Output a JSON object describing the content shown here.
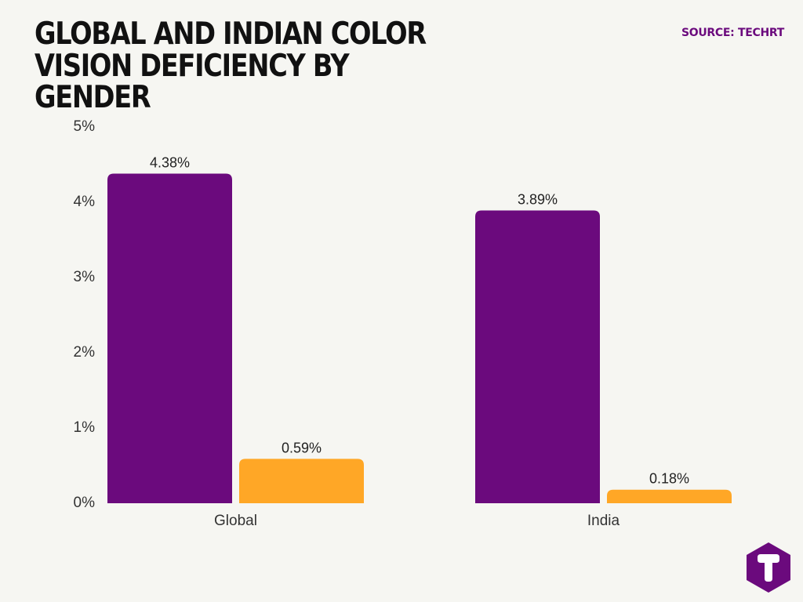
{
  "header": {
    "title": "GLOBAL AND INDIAN COLOR VISION DEFICIENCY BY GENDER",
    "source": "SOURCE: TECHRT"
  },
  "colors": {
    "series_1": "#6b0a7d",
    "series_2": "#ffa726",
    "source_text": "#6b0a7d",
    "logo_bg": "#6b0a7d",
    "logo_letter": "#ffffff"
  },
  "logo": {
    "icon": "techrt-logo-icon"
  },
  "chart_data": {
    "type": "bar",
    "title": "GLOBAL AND INDIAN COLOR VISION DEFICIENCY BY GENDER",
    "xlabel": "",
    "ylabel": "",
    "categories": [
      "Global",
      "India"
    ],
    "series": [
      {
        "values": [
          4.38,
          3.89
        ],
        "labels": [
          "4.38%",
          "3.89%"
        ]
      },
      {
        "values": [
          0.59,
          0.18
        ],
        "labels": [
          "0.59%",
          "0.18%"
        ]
      }
    ],
    "ylim": [
      0,
      5
    ],
    "yticks": [
      0,
      1,
      2,
      3,
      4,
      5
    ],
    "ytick_labels": [
      "0%",
      "1%",
      "2%",
      "3%",
      "4%",
      "5%"
    ],
    "grid": false,
    "legend": "none"
  }
}
